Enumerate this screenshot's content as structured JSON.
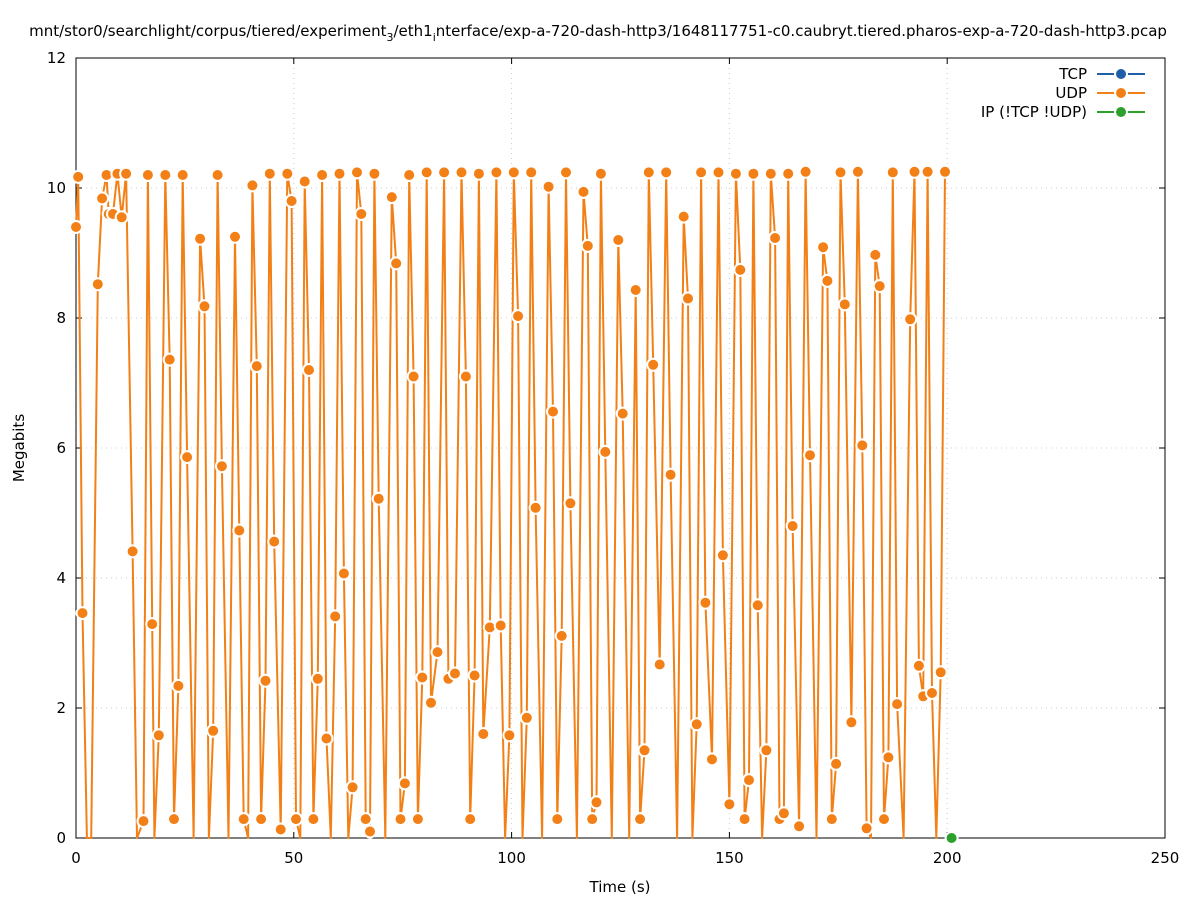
{
  "chart_data": {
    "type": "line",
    "title": "mnt/stor0/searchlight/corpus/tiered/experiment",
    "title_sub": "3",
    "title_mid": "/eth1",
    "title_sub2": "i",
    "title_rest": "nterface/exp-a-720-dash-http3/1648117751-c0.caubryt.tiered.pharos-exp-a-720-dash-http3.pcap",
    "xlabel": "Time (s)",
    "ylabel": "Megabits",
    "xlim": [
      0,
      250
    ],
    "ylim": [
      0,
      12
    ],
    "x_ticks": [
      0,
      50,
      100,
      150,
      200,
      250
    ],
    "y_ticks": [
      0,
      2,
      4,
      6,
      8,
      10,
      12
    ],
    "grid": true,
    "legend_position": "top-right",
    "series": [
      {
        "name": "TCP",
        "color": "#1f5fa8",
        "points": []
      },
      {
        "name": "UDP",
        "color": "#f28017",
        "points": [
          [
            0,
            9.4
          ],
          [
            0.5,
            10.17
          ],
          [
            1.5,
            3.46
          ],
          [
            2.5,
            0
          ],
          [
            3.5,
            0
          ],
          [
            5,
            8.52
          ],
          [
            6,
            9.84
          ],
          [
            7,
            10.2
          ],
          [
            7.5,
            9.6
          ],
          [
            8.5,
            9.6
          ],
          [
            9.5,
            10.22
          ],
          [
            10.5,
            9.55
          ],
          [
            11.5,
            10.22
          ],
          [
            13,
            4.41
          ],
          [
            14,
            0
          ],
          [
            15.5,
            0.26
          ],
          [
            16.5,
            10.2
          ],
          [
            17.5,
            3.29
          ],
          [
            18,
            0
          ],
          [
            19,
            1.58
          ],
          [
            20.5,
            10.2
          ],
          [
            21.5,
            7.36
          ],
          [
            22.5,
            0.29
          ],
          [
            23.5,
            2.34
          ],
          [
            24.5,
            10.2
          ],
          [
            25.5,
            5.86
          ],
          [
            27,
            0
          ],
          [
            28.5,
            9.22
          ],
          [
            29.5,
            8.18
          ],
          [
            30.5,
            0
          ],
          [
            31.5,
            1.65
          ],
          [
            32.5,
            10.2
          ],
          [
            33.5,
            5.72
          ],
          [
            35,
            0
          ],
          [
            36.5,
            9.25
          ],
          [
            37.5,
            4.73
          ],
          [
            38.5,
            0.29
          ],
          [
            39.5,
            0
          ],
          [
            40.5,
            10.04
          ],
          [
            41.5,
            7.26
          ],
          [
            42.5,
            0.29
          ],
          [
            43.5,
            2.42
          ],
          [
            44.5,
            10.22
          ],
          [
            45.5,
            4.56
          ],
          [
            47,
            0.13
          ],
          [
            48.5,
            10.22
          ],
          [
            49.5,
            9.8
          ],
          [
            50.5,
            0.29
          ],
          [
            51.5,
            0
          ],
          [
            52.5,
            10.1
          ],
          [
            53.5,
            7.2
          ],
          [
            54.5,
            0.29
          ],
          [
            55.5,
            2.45
          ],
          [
            56.5,
            10.2
          ],
          [
            57.5,
            1.53
          ],
          [
            58.5,
            0
          ],
          [
            59.5,
            3.41
          ],
          [
            60.5,
            10.22
          ],
          [
            61.5,
            4.07
          ],
          [
            62.5,
            0
          ],
          [
            63.5,
            0.78
          ],
          [
            64.5,
            10.24
          ],
          [
            65.5,
            9.6
          ],
          [
            66.5,
            0.29
          ],
          [
            67.5,
            0.1
          ],
          [
            68.5,
            10.22
          ],
          [
            69.5,
            5.22
          ],
          [
            71,
            0
          ],
          [
            72.5,
            9.86
          ],
          [
            73.5,
            8.84
          ],
          [
            74.5,
            0.29
          ],
          [
            75.5,
            0.84
          ],
          [
            76.5,
            10.2
          ],
          [
            77.5,
            7.1
          ],
          [
            78.5,
            0.29
          ],
          [
            79.5,
            2.47
          ],
          [
            80.5,
            10.24
          ],
          [
            81.5,
            2.08
          ],
          [
            83,
            2.86
          ],
          [
            84.5,
            10.24
          ],
          [
            85.5,
            2.45
          ],
          [
            87,
            2.53
          ],
          [
            88.5,
            10.24
          ],
          [
            89.5,
            7.1
          ],
          [
            90.5,
            0.29
          ],
          [
            91.5,
            2.5
          ],
          [
            92.5,
            10.22
          ],
          [
            93.5,
            1.6
          ],
          [
            95,
            3.24
          ],
          [
            96.5,
            10.24
          ],
          [
            97.5,
            3.27
          ],
          [
            98.5,
            0
          ],
          [
            99.5,
            1.58
          ],
          [
            100.5,
            10.24
          ],
          [
            101.5,
            8.03
          ],
          [
            102.5,
            0
          ],
          [
            103.5,
            1.85
          ],
          [
            104.5,
            10.24
          ],
          [
            105.5,
            5.08
          ],
          [
            107,
            0
          ],
          [
            108.5,
            10.02
          ],
          [
            109.5,
            6.56
          ],
          [
            110.5,
            0.29
          ],
          [
            111.5,
            3.11
          ],
          [
            112.5,
            10.24
          ],
          [
            113.5,
            5.15
          ],
          [
            115,
            0
          ],
          [
            116.5,
            9.94
          ],
          [
            117.5,
            9.11
          ],
          [
            118.5,
            0.29
          ],
          [
            119.5,
            0.55
          ],
          [
            120.5,
            10.22
          ],
          [
            121.5,
            5.94
          ],
          [
            123,
            0
          ],
          [
            124.5,
            9.2
          ],
          [
            125.5,
            6.53
          ],
          [
            127,
            0
          ],
          [
            128.5,
            8.43
          ],
          [
            129.5,
            0.29
          ],
          [
            130.5,
            1.35
          ],
          [
            131.5,
            10.24
          ],
          [
            132.5,
            7.28
          ],
          [
            134,
            2.67
          ],
          [
            135.5,
            10.24
          ],
          [
            136.5,
            5.59
          ],
          [
            138,
            0
          ],
          [
            139.5,
            9.56
          ],
          [
            140.5,
            8.3
          ],
          [
            141.5,
            0
          ],
          [
            142.5,
            1.75
          ],
          [
            143.5,
            10.24
          ],
          [
            144.5,
            3.62
          ],
          [
            146,
            1.21
          ],
          [
            147.5,
            10.24
          ],
          [
            148.5,
            4.35
          ],
          [
            150,
            0.52
          ],
          [
            151.5,
            10.22
          ],
          [
            152.5,
            8.74
          ],
          [
            153.5,
            0.29
          ],
          [
            154.5,
            0.89
          ],
          [
            155.5,
            10.22
          ],
          [
            156.5,
            3.58
          ],
          [
            157.5,
            0
          ],
          [
            158.5,
            1.35
          ],
          [
            159.5,
            10.22
          ],
          [
            160.5,
            9.23
          ],
          [
            161.5,
            0.29
          ],
          [
            162.5,
            0.38
          ],
          [
            163.5,
            10.22
          ],
          [
            164.5,
            4.8
          ],
          [
            166,
            0.18
          ],
          [
            167.5,
            10.25
          ],
          [
            168.5,
            5.89
          ],
          [
            170,
            0
          ],
          [
            171.5,
            9.09
          ],
          [
            172.5,
            8.57
          ],
          [
            173.5,
            0.29
          ],
          [
            174.5,
            1.14
          ],
          [
            175.5,
            10.24
          ],
          [
            176.5,
            8.21
          ],
          [
            178,
            1.78
          ],
          [
            179.5,
            10.25
          ],
          [
            180.5,
            6.04
          ],
          [
            181.5,
            0.15
          ],
          [
            182.5,
            0
          ],
          [
            183.5,
            8.97
          ],
          [
            184.5,
            8.49
          ],
          [
            185.5,
            0.29
          ],
          [
            186.5,
            1.24
          ],
          [
            187.5,
            10.24
          ],
          [
            188.5,
            2.06
          ],
          [
            190,
            0
          ],
          [
            191.5,
            7.98
          ],
          [
            192.5,
            10.25
          ],
          [
            193.5,
            2.65
          ],
          [
            194.5,
            2.18
          ],
          [
            195.5,
            10.25
          ],
          [
            196.5,
            2.23
          ],
          [
            197.5,
            0
          ],
          [
            198.5,
            2.55
          ],
          [
            199.5,
            10.25
          ]
        ]
      },
      {
        "name": "IP (!TCP  !UDP)",
        "color": "#2ca02c",
        "points": [
          [
            201,
            0
          ]
        ]
      }
    ]
  }
}
